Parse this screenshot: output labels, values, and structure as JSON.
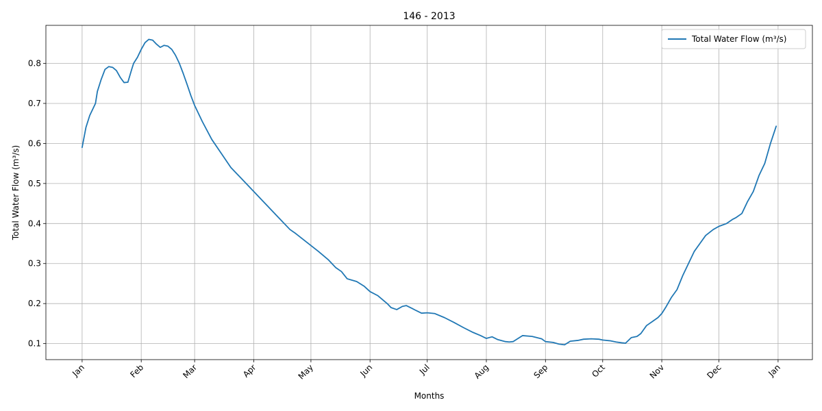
{
  "chart_data": {
    "type": "line",
    "title": "146 - 2013",
    "xlabel": "Months",
    "ylabel": "Total Water Flow (m³/s)",
    "x_tick_labels": [
      "Jan",
      "Feb",
      "Mar",
      "Apr",
      "May",
      "Jun",
      "Jul",
      "Aug",
      "Sep",
      "Oct",
      "Nov",
      "Dec",
      "Jan"
    ],
    "x_tick_dates": [
      "2013-01-01",
      "2013-02-01",
      "2013-03-01",
      "2013-04-01",
      "2013-05-01",
      "2013-06-01",
      "2013-07-01",
      "2013-08-01",
      "2013-09-01",
      "2013-10-01",
      "2013-11-01",
      "2013-12-01",
      "2014-01-01"
    ],
    "xlim": [
      "2012-12-13",
      "2014-01-19"
    ],
    "y_ticks": [
      0.1,
      0.2,
      0.3,
      0.4,
      0.5,
      0.6,
      0.7,
      0.8
    ],
    "ylim": [
      0.06,
      0.895
    ],
    "grid": true,
    "legend_position": "top-right",
    "series": [
      {
        "name": "Total Water Flow (m³/s)",
        "color": "#1f77b4",
        "x": [
          "2013-01-01",
          "2013-01-03",
          "2013-01-05",
          "2013-01-08",
          "2013-01-09",
          "2013-01-11",
          "2013-01-13",
          "2013-01-15",
          "2013-01-17",
          "2013-01-19",
          "2013-01-21",
          "2013-01-23",
          "2013-01-25",
          "2013-01-27",
          "2013-01-28",
          "2013-01-30",
          "2013-02-01",
          "2013-02-03",
          "2013-02-05",
          "2013-02-07",
          "2013-02-09",
          "2013-02-11",
          "2013-02-13",
          "2013-02-15",
          "2013-02-17",
          "2013-02-19",
          "2013-02-21",
          "2013-02-23",
          "2013-02-25",
          "2013-02-27",
          "2013-03-01",
          "2013-03-05",
          "2013-03-10",
          "2013-03-15",
          "2013-03-20",
          "2013-03-24",
          "2013-03-27",
          "2013-04-01",
          "2013-04-05",
          "2013-04-08",
          "2013-04-10",
          "2013-04-15",
          "2013-04-20",
          "2013-04-23",
          "2013-05-01",
          "2013-05-05",
          "2013-05-10",
          "2013-05-14",
          "2013-05-17",
          "2013-05-20",
          "2013-05-25",
          "2013-05-29",
          "2013-06-01",
          "2013-06-05",
          "2013-06-10",
          "2013-06-12",
          "2013-06-15",
          "2013-06-18",
          "2013-06-20",
          "2013-06-23",
          "2013-06-25",
          "2013-06-28",
          "2013-07-01",
          "2013-07-05",
          "2013-07-10",
          "2013-07-15",
          "2013-07-20",
          "2013-07-25",
          "2013-07-29",
          "2013-08-01",
          "2013-08-04",
          "2013-08-07",
          "2013-08-11",
          "2013-08-13",
          "2013-08-15",
          "2013-08-20",
          "2013-08-25",
          "2013-08-30",
          "2013-09-01",
          "2013-09-05",
          "2013-09-08",
          "2013-09-11",
          "2013-09-14",
          "2013-09-18",
          "2013-09-21",
          "2013-09-25",
          "2013-09-29",
          "2013-10-01",
          "2013-10-05",
          "2013-10-08",
          "2013-10-11",
          "2013-10-13",
          "2013-10-16",
          "2013-10-19",
          "2013-10-21",
          "2013-10-24",
          "2013-10-27",
          "2013-10-30",
          "2013-11-01",
          "2013-11-03",
          "2013-11-06",
          "2013-11-09",
          "2013-11-12",
          "2013-11-15",
          "2013-11-18",
          "2013-11-21",
          "2013-11-24",
          "2013-11-28",
          "2013-12-01",
          "2013-12-05",
          "2013-12-08",
          "2013-12-10",
          "2013-12-13",
          "2013-12-16",
          "2013-12-19",
          "2013-12-22",
          "2013-12-25",
          "2013-12-28",
          "2013-12-31"
        ],
        "y": [
          0.59,
          0.64,
          0.67,
          0.7,
          0.73,
          0.76,
          0.785,
          0.792,
          0.79,
          0.782,
          0.765,
          0.752,
          0.753,
          0.785,
          0.8,
          0.815,
          0.835,
          0.852,
          0.86,
          0.858,
          0.848,
          0.84,
          0.845,
          0.843,
          0.835,
          0.82,
          0.8,
          0.775,
          0.748,
          0.72,
          0.695,
          0.655,
          0.61,
          0.575,
          0.54,
          0.52,
          0.505,
          0.48,
          0.46,
          0.445,
          0.435,
          0.41,
          0.385,
          0.375,
          0.345,
          0.33,
          0.31,
          0.29,
          0.28,
          0.262,
          0.255,
          0.243,
          0.23,
          0.22,
          0.2,
          0.19,
          0.185,
          0.193,
          0.195,
          0.188,
          0.183,
          0.176,
          0.177,
          0.175,
          0.165,
          0.153,
          0.14,
          0.128,
          0.12,
          0.113,
          0.117,
          0.11,
          0.105,
          0.104,
          0.105,
          0.12,
          0.118,
          0.112,
          0.105,
          0.103,
          0.099,
          0.097,
          0.106,
          0.108,
          0.111,
          0.112,
          0.111,
          0.109,
          0.107,
          0.104,
          0.102,
          0.101,
          0.115,
          0.118,
          0.125,
          0.145,
          0.155,
          0.165,
          0.175,
          0.19,
          0.215,
          0.235,
          0.27,
          0.3,
          0.33,
          0.35,
          0.37,
          0.385,
          0.393,
          0.4,
          0.41,
          0.415,
          0.425,
          0.455,
          0.48,
          0.52,
          0.55,
          0.6,
          0.643
        ]
      }
    ]
  }
}
